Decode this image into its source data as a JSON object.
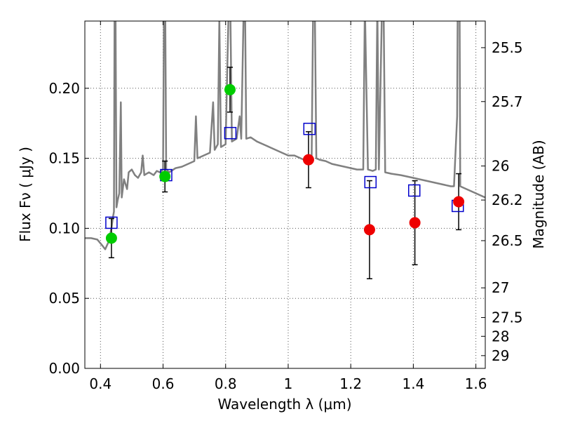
{
  "chart_data": {
    "type": "scatter",
    "xlabel": "Wavelength  λ (μm)",
    "ylabel": "Flux  Fν  ( μJy )",
    "y2label": "Magnitude (AB)",
    "xlim": [
      0.35,
      1.63
    ],
    "ylim": [
      0.0,
      0.248
    ],
    "xticks": [
      0.4,
      0.6,
      0.8,
      1.0,
      1.2,
      1.4,
      1.6
    ],
    "xtick_labels": [
      "0.4",
      "0.6",
      "0.8",
      "1",
      "1.2",
      "1.4",
      "1.6"
    ],
    "yticks": [
      0.0,
      0.05,
      0.1,
      0.15,
      0.2
    ],
    "ytick_labels": [
      "0.00",
      "0.05",
      "0.10",
      "0.15",
      "0.20"
    ],
    "y2ticks": [
      {
        "label": "25.5",
        "flux": 0.229
      },
      {
        "label": "25.7",
        "flux": 0.1905
      },
      {
        "label": "26",
        "flux": 0.1445
      },
      {
        "label": "26.2",
        "flux": 0.1202
      },
      {
        "label": "26.5",
        "flux": 0.0912
      },
      {
        "label": "27",
        "flux": 0.0575
      },
      {
        "label": "27.5",
        "flux": 0.0363
      },
      {
        "label": "28",
        "flux": 0.0229
      },
      {
        "label": "29",
        "flux": 0.0091
      }
    ],
    "grid": true,
    "colors": {
      "model": "#808080",
      "green": "#00cc00",
      "red": "#ee0000",
      "box": "#0000cc",
      "errorbar": "#000000"
    },
    "model_spectrum": [
      [
        0.35,
        0.093
      ],
      [
        0.37,
        0.093
      ],
      [
        0.39,
        0.092
      ],
      [
        0.405,
        0.088
      ],
      [
        0.415,
        0.085
      ],
      [
        0.425,
        0.09
      ],
      [
        0.435,
        0.1
      ],
      [
        0.44,
        0.108
      ],
      [
        0.443,
        0.112
      ],
      [
        0.445,
        0.26
      ],
      [
        0.448,
        0.26
      ],
      [
        0.451,
        0.115
      ],
      [
        0.455,
        0.12
      ],
      [
        0.46,
        0.125
      ],
      [
        0.465,
        0.19
      ],
      [
        0.468,
        0.122
      ],
      [
        0.475,
        0.135
      ],
      [
        0.485,
        0.128
      ],
      [
        0.49,
        0.14
      ],
      [
        0.5,
        0.142
      ],
      [
        0.51,
        0.138
      ],
      [
        0.52,
        0.136
      ],
      [
        0.53,
        0.14
      ],
      [
        0.535,
        0.152
      ],
      [
        0.54,
        0.138
      ],
      [
        0.555,
        0.14
      ],
      [
        0.57,
        0.138
      ],
      [
        0.58,
        0.141
      ],
      [
        0.59,
        0.14
      ],
      [
        0.6,
        0.142
      ],
      [
        0.603,
        0.26
      ],
      [
        0.607,
        0.26
      ],
      [
        0.61,
        0.142
      ],
      [
        0.62,
        0.14
      ],
      [
        0.64,
        0.143
      ],
      [
        0.66,
        0.144
      ],
      [
        0.68,
        0.146
      ],
      [
        0.7,
        0.148
      ],
      [
        0.705,
        0.18
      ],
      [
        0.71,
        0.15
      ],
      [
        0.73,
        0.152
      ],
      [
        0.75,
        0.154
      ],
      [
        0.76,
        0.19
      ],
      [
        0.765,
        0.156
      ],
      [
        0.775,
        0.16
      ],
      [
        0.78,
        0.25
      ],
      [
        0.785,
        0.158
      ],
      [
        0.8,
        0.16
      ],
      [
        0.81,
        0.26
      ],
      [
        0.815,
        0.26
      ],
      [
        0.82,
        0.162
      ],
      [
        0.835,
        0.164
      ],
      [
        0.845,
        0.18
      ],
      [
        0.85,
        0.164
      ],
      [
        0.858,
        0.26
      ],
      [
        0.862,
        0.26
      ],
      [
        0.866,
        0.164
      ],
      [
        0.88,
        0.165
      ],
      [
        0.9,
        0.162
      ],
      [
        0.92,
        0.16
      ],
      [
        0.94,
        0.158
      ],
      [
        0.96,
        0.156
      ],
      [
        0.98,
        0.154
      ],
      [
        1.0,
        0.152
      ],
      [
        1.02,
        0.152
      ],
      [
        1.04,
        0.15
      ],
      [
        1.05,
        0.149
      ],
      [
        1.075,
        0.15
      ],
      [
        1.08,
        0.26
      ],
      [
        1.085,
        0.26
      ],
      [
        1.09,
        0.15
      ],
      [
        1.1,
        0.149
      ],
      [
        1.12,
        0.148
      ],
      [
        1.14,
        0.146
      ],
      [
        1.16,
        0.145
      ],
      [
        1.18,
        0.144
      ],
      [
        1.2,
        0.143
      ],
      [
        1.22,
        0.142
      ],
      [
        1.24,
        0.142
      ],
      [
        1.245,
        0.26
      ],
      [
        1.25,
        0.2
      ],
      [
        1.255,
        0.142
      ],
      [
        1.27,
        0.141
      ],
      [
        1.28,
        0.142
      ],
      [
        1.285,
        0.26
      ],
      [
        1.29,
        0.142
      ],
      [
        1.3,
        0.26
      ],
      [
        1.305,
        0.26
      ],
      [
        1.31,
        0.14
      ],
      [
        1.33,
        0.139
      ],
      [
        1.36,
        0.138
      ],
      [
        1.4,
        0.136
      ],
      [
        1.44,
        0.134
      ],
      [
        1.48,
        0.132
      ],
      [
        1.52,
        0.13
      ],
      [
        1.53,
        0.13
      ],
      [
        1.54,
        0.18
      ],
      [
        1.542,
        0.26
      ],
      [
        1.548,
        0.26
      ],
      [
        1.55,
        0.13
      ],
      [
        1.57,
        0.128
      ],
      [
        1.6,
        0.125
      ],
      [
        1.63,
        0.122
      ]
    ],
    "measured_green": [
      {
        "x": 0.435,
        "y": 0.093,
        "err": 0.014
      },
      {
        "x": 0.606,
        "y": 0.137,
        "err": 0.011
      },
      {
        "x": 0.814,
        "y": 0.199,
        "err": 0.016
      }
    ],
    "measured_red": [
      {
        "x": 1.065,
        "y": 0.149,
        "err": 0.02
      },
      {
        "x": 1.26,
        "y": 0.099,
        "err": 0.035
      },
      {
        "x": 1.405,
        "y": 0.104,
        "err": 0.03
      },
      {
        "x": 1.545,
        "y": 0.119,
        "err": 0.02
      }
    ],
    "model_boxes": [
      {
        "x": 0.435,
        "y": 0.104
      },
      {
        "x": 0.61,
        "y": 0.138
      },
      {
        "x": 0.815,
        "y": 0.168
      },
      {
        "x": 1.068,
        "y": 0.171
      },
      {
        "x": 1.263,
        "y": 0.133
      },
      {
        "x": 1.403,
        "y": 0.127
      },
      {
        "x": 1.542,
        "y": 0.116
      }
    ]
  }
}
